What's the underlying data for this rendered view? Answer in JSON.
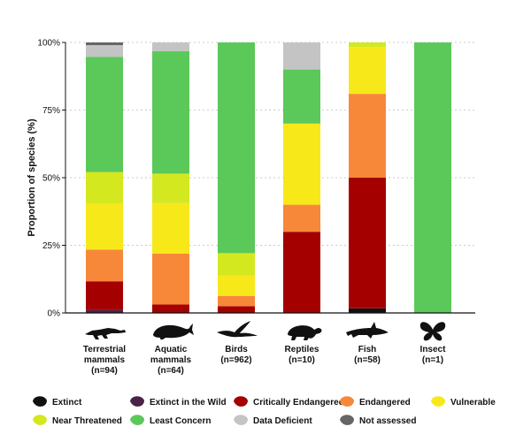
{
  "chart_data": {
    "type": "bar",
    "stacked": true,
    "ylabel": "Proportion of species (%)",
    "ylim": [
      0,
      100
    ],
    "yticks": [
      "0%",
      "25%",
      "50%",
      "75%",
      "100%"
    ],
    "grid": "dotted horizontal at 25% intervals",
    "legend_position": "bottom",
    "categories": [
      {
        "name": "Terrestrial\nmammals",
        "n": "(n=94)",
        "icon": "crocodile-icon"
      },
      {
        "name": "Aquatic\nmammals",
        "n": "(n=64)",
        "icon": "whale-icon"
      },
      {
        "name": "Birds",
        "n": "(n=962)",
        "icon": "bird-icon"
      },
      {
        "name": "Reptiles",
        "n": "(n=10)",
        "icon": "turtle-icon"
      },
      {
        "name": "Fish",
        "n": "(n=58)",
        "icon": "shark-icon"
      },
      {
        "name": "Insect",
        "n": "(n=1)",
        "icon": "butterfly-icon"
      }
    ],
    "series": [
      {
        "name": "Extinct",
        "color": "#111111",
        "values": [
          0,
          0,
          0,
          0,
          1.7,
          0
        ]
      },
      {
        "name": "Extinct in the Wild",
        "color": "#4a2246",
        "values": [
          1.1,
          0,
          0,
          0,
          0,
          0
        ]
      },
      {
        "name": "Critically Endangered",
        "color": "#a50000",
        "values": [
          10.6,
          3.1,
          2.5,
          30,
          48.3,
          0
        ]
      },
      {
        "name": "Endangered",
        "color": "#f7883a",
        "values": [
          11.7,
          18.8,
          3.8,
          10,
          31,
          0
        ]
      },
      {
        "name": "Vulnerable",
        "color": "#f7e81a",
        "values": [
          17,
          18.7,
          7.6,
          30,
          17.3,
          0
        ]
      },
      {
        "name": "Near Threatened",
        "color": "#d4e81f",
        "values": [
          11.7,
          10.9,
          8.2,
          0,
          1.7,
          0
        ]
      },
      {
        "name": "Least Concern",
        "color": "#5bc85a",
        "values": [
          42.6,
          45.3,
          77.9,
          20,
          0,
          100
        ]
      },
      {
        "name": "Data Deficient",
        "color": "#c4c4c4",
        "values": [
          4.3,
          3.2,
          0,
          10,
          0,
          0
        ]
      },
      {
        "name": "Not assessed",
        "color": "#666666",
        "values": [
          1,
          0,
          0,
          0,
          0,
          0
        ]
      }
    ]
  }
}
